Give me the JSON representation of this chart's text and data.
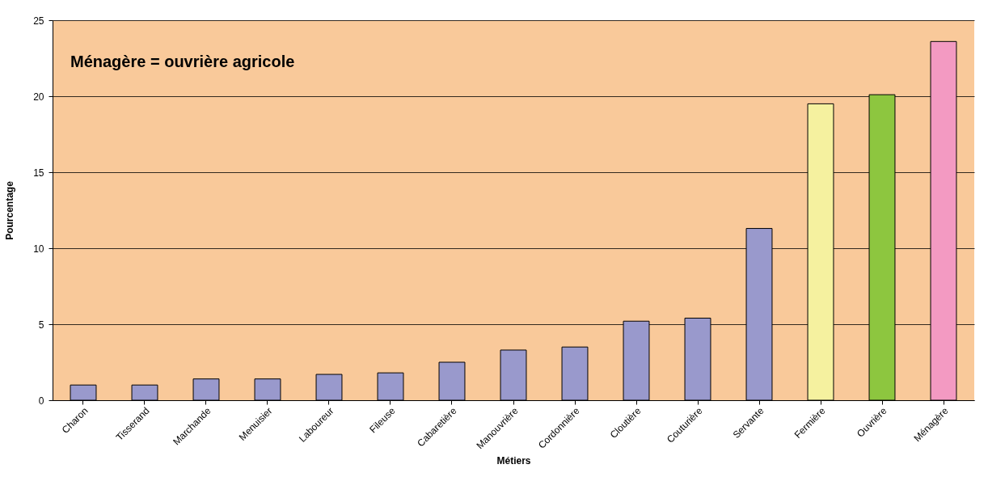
{
  "chart_data": {
    "type": "bar",
    "xlabel": "Métiers",
    "ylabel": "Pourcentage",
    "categories": [
      "Charon",
      "Tisserand",
      "Marchande",
      "Menuisier",
      "Laboureur",
      "Fileuse",
      "Cabaretière",
      "Manouvrière",
      "Cordonnière",
      "Cloutière",
      "Couturière",
      "Servante",
      "Fermière",
      "Ouvrière",
      "Ménagère"
    ],
    "values": [
      1.0,
      1.0,
      1.4,
      1.4,
      1.7,
      1.8,
      2.5,
      3.3,
      3.5,
      5.2,
      5.4,
      11.3,
      19.5,
      20.1,
      23.6
    ],
    "colors": [
      "#9999cc",
      "#9999cc",
      "#9999cc",
      "#9999cc",
      "#9999cc",
      "#9999cc",
      "#9999cc",
      "#9999cc",
      "#9999cc",
      "#9999cc",
      "#9999cc",
      "#9999cc",
      "#f5f19f",
      "#8dc63f",
      "#f39ac2"
    ],
    "ylim": [
      0,
      25
    ],
    "yticks": [
      0,
      5,
      10,
      15,
      20,
      25
    ],
    "grid": "y",
    "annotations": [
      "Ménagère = ouvrière agricole"
    ]
  }
}
